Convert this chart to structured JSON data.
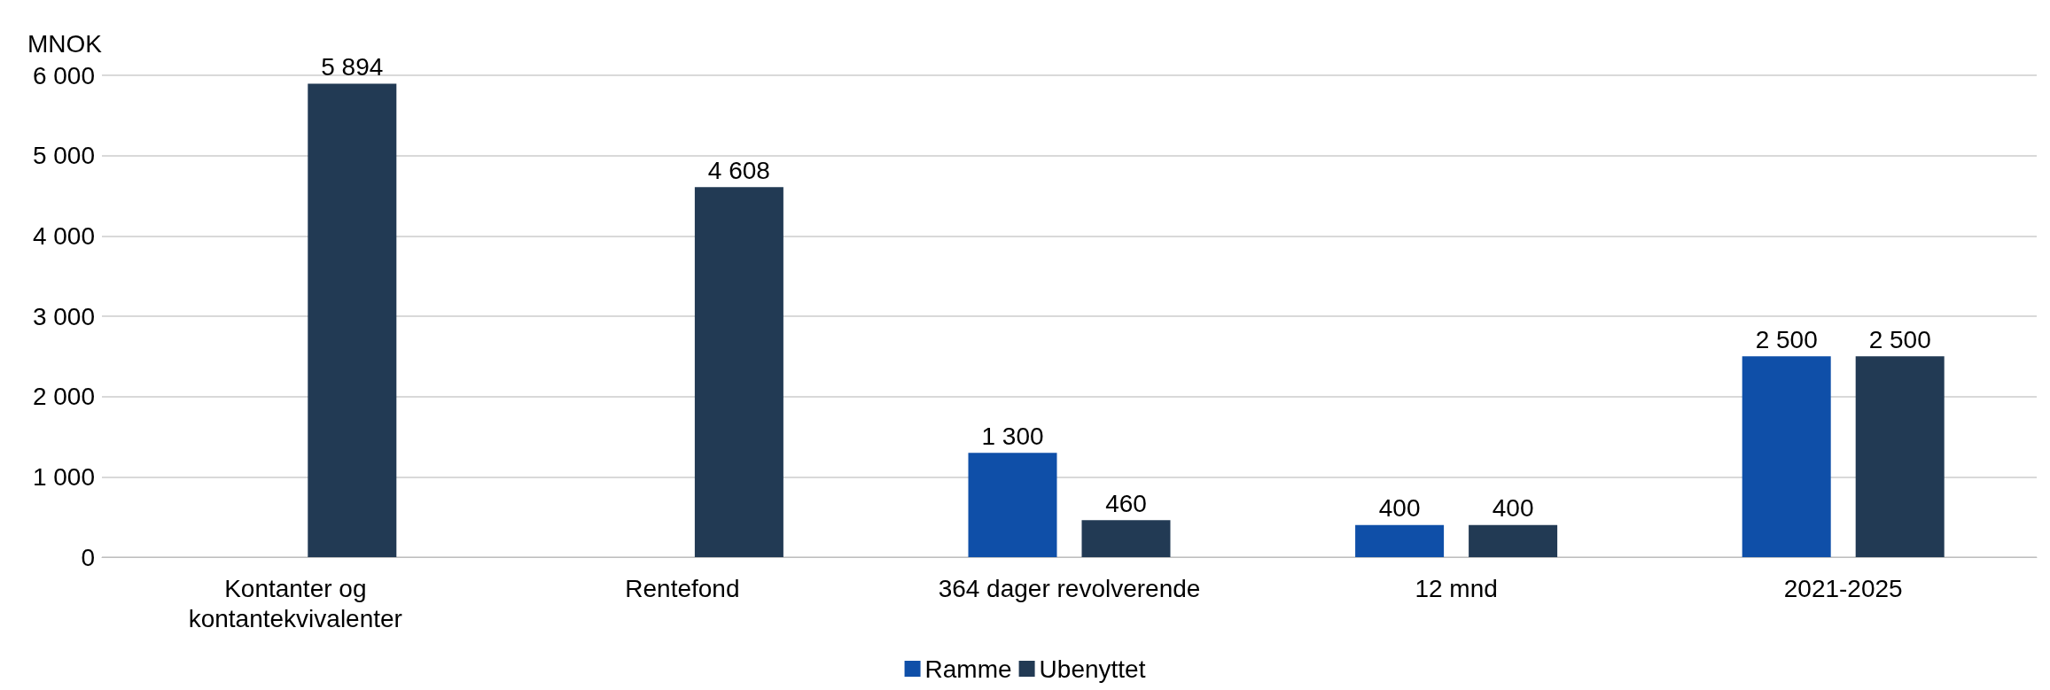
{
  "chart_data": {
    "type": "bar",
    "ylabel": "MNOK",
    "categories": [
      "Kontanter og\nkontantekvivalenter",
      "Rentefond",
      "364 dager revolverende",
      "12 mnd",
      "2021-2025"
    ],
    "series": [
      {
        "name": "Ramme",
        "color": "#0f4fa8",
        "values": [
          null,
          null,
          1300,
          400,
          2500
        ],
        "value_labels": [
          null,
          null,
          "1 300",
          "400",
          "2 500"
        ]
      },
      {
        "name": "Ubenyttet",
        "color": "#223a54",
        "values": [
          5894,
          4608,
          460,
          400,
          2500
        ],
        "value_labels": [
          "5 894",
          "4 608",
          "460",
          "400",
          "2 500"
        ]
      }
    ],
    "ylim": [
      0,
      6000
    ],
    "yticks": [
      {
        "value": 0,
        "label": "0"
      },
      {
        "value": 1000,
        "label": "1 000"
      },
      {
        "value": 2000,
        "label": "2 000"
      },
      {
        "value": 3000,
        "label": "3 000"
      },
      {
        "value": 4000,
        "label": "4 000"
      },
      {
        "value": 5000,
        "label": "5 000"
      },
      {
        "value": 6000,
        "label": "6 000"
      }
    ],
    "grid": "y",
    "legend": "bottom"
  }
}
